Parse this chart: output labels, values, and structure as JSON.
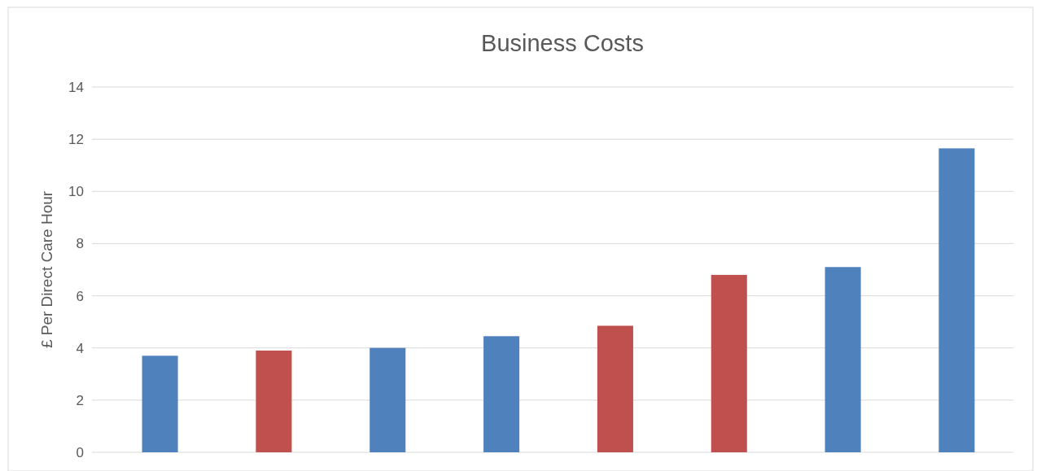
{
  "chart_data": {
    "type": "bar",
    "title": "Business Costs",
    "ylabel": "£ Per Direct Care Hour",
    "categories": [
      null,
      null,
      null,
      null,
      null,
      null,
      null,
      null
    ],
    "values": [
      3.7,
      3.9,
      4.0,
      4.45,
      4.85,
      6.8,
      7.1,
      11.65
    ],
    "colors": [
      "#4f81bd",
      "#c0504d",
      "#4f81bd",
      "#4f81bd",
      "#c0504d",
      "#c0504d",
      "#4f81bd",
      "#4f81bd"
    ],
    "ylim": [
      0,
      14
    ],
    "yticks": [
      0,
      2,
      4,
      6,
      8,
      10,
      12,
      14
    ],
    "grid": "y"
  }
}
